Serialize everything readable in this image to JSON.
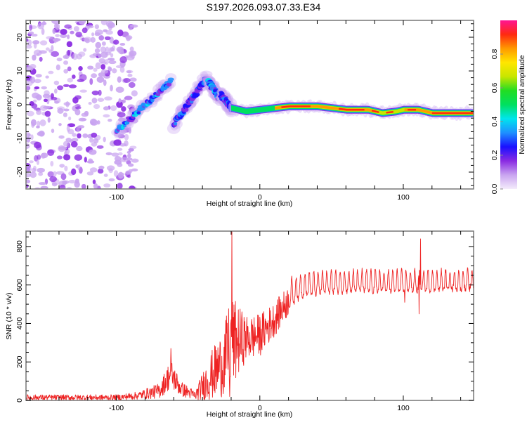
{
  "title": "S197.2026.093.07.33.E34",
  "chart_data": [
    {
      "type": "heatmap",
      "name": "spectrogram",
      "title": "S197.2026.093.07.33.E34",
      "xlabel": "Height of straight line (km)",
      "ylabel": "Frequency (Hz)",
      "xlim": [
        -163,
        149
      ],
      "ylim": [
        -25,
        25
      ],
      "xticks": [
        -100,
        0,
        100
      ],
      "xtick_labels": [
        "-100",
        "0",
        "100"
      ],
      "yticks": [
        -20,
        -10,
        0,
        10,
        20
      ],
      "ytick_labels": [
        "-20",
        "-10",
        "0",
        "10",
        "20"
      ],
      "colorbar": {
        "label": "Normalized spectral amplitude",
        "range": [
          0,
          1
        ],
        "ticks": [
          0.0,
          0.2,
          0.4,
          0.6,
          0.8
        ],
        "tick_labels": [
          "0.0",
          "0.2",
          "0.4",
          "0.6",
          "0.8"
        ],
        "colors": [
          "#f4ecfb",
          "#c9a4f0",
          "#8a2be2",
          "#1a10ff",
          "#1e90ff",
          "#00e5ee",
          "#00e060",
          "#22dd22",
          "#c8e600",
          "#ffe600",
          "#ff9900",
          "#ff2a10",
          "#ff1493"
        ]
      },
      "features": {
        "noise_region_x": [
          -163,
          -95
        ],
        "chirp_segments": [
          {
            "x": [
              -100,
              -62
            ],
            "y": [
              -8,
              7
            ],
            "peak_amp": 0.35
          },
          {
            "x": [
              -60,
              -37
            ],
            "y": [
              -6,
              8
            ],
            "peak_amp": 0.3
          },
          {
            "x": [
              -36,
              -28
            ],
            "y": [
              7,
              2
            ],
            "peak_amp": 0.35
          },
          {
            "x": [
              -27,
              -20
            ],
            "y": [
              3,
              -1
            ],
            "peak_amp": 0.3
          }
        ],
        "main_trace": {
          "points": [
            [
              -20,
              -1
            ],
            [
              -10,
              -2
            ],
            [
              0,
              -1.5
            ],
            [
              20,
              -0.5
            ],
            [
              40,
              -0.5
            ],
            [
              60,
              -1.5
            ],
            [
              75,
              -1.5
            ],
            [
              85,
              -2.5
            ],
            [
              95,
              -2
            ],
            [
              100,
              -1.5
            ],
            [
              110,
              -1.5
            ],
            [
              120,
              -2.5
            ],
            [
              149,
              -2.5
            ]
          ],
          "peak_amp": 0.9
        }
      }
    },
    {
      "type": "line",
      "name": "snr",
      "xlabel": "Height of straight line (km)",
      "ylabel": "SNR (10 * v/v)",
      "xlim": [
        -163,
        149
      ],
      "ylim": [
        0,
        880
      ],
      "xticks": [
        -100,
        0,
        100
      ],
      "xtick_labels": [
        "-100",
        "0",
        "100"
      ],
      "yticks": [
        0,
        200,
        400,
        600,
        800
      ],
      "ytick_labels": [
        "0",
        "200",
        "400",
        "600",
        "800"
      ],
      "color": "#ee2222",
      "envelope": [
        {
          "x": -163,
          "base": 15,
          "amp": 15
        },
        {
          "x": -100,
          "base": 15,
          "amp": 15
        },
        {
          "x": -85,
          "base": 25,
          "amp": 20
        },
        {
          "x": -70,
          "base": 50,
          "amp": 40
        },
        {
          "x": -62,
          "base": 140,
          "amp": 80
        },
        {
          "x": -55,
          "base": 60,
          "amp": 40
        },
        {
          "x": -45,
          "base": 25,
          "amp": 25
        },
        {
          "x": -35,
          "base": 120,
          "amp": 120
        },
        {
          "x": -25,
          "base": 200,
          "amp": 180
        },
        {
          "x": -20,
          "base": 300,
          "amp": 250
        },
        {
          "x": -10,
          "base": 320,
          "amp": 120
        },
        {
          "x": 0,
          "base": 340,
          "amp": 110
        },
        {
          "x": 10,
          "base": 420,
          "amp": 90
        },
        {
          "x": 20,
          "base": 520,
          "amp": 80
        },
        {
          "x": 30,
          "base": 570,
          "amp": 70
        },
        {
          "x": 50,
          "base": 590,
          "amp": 65
        },
        {
          "x": 100,
          "base": 590,
          "amp": 65
        },
        {
          "x": 149,
          "base": 600,
          "amp": 60
        }
      ],
      "spikes": [
        {
          "x": -62,
          "y": 270
        },
        {
          "x": -19.5,
          "y": 880
        },
        {
          "x": -21,
          "y": 20
        },
        {
          "x": 112,
          "y": 840
        },
        {
          "x": 111,
          "y": 450
        },
        {
          "x": 101,
          "y": 510
        }
      ]
    }
  ]
}
